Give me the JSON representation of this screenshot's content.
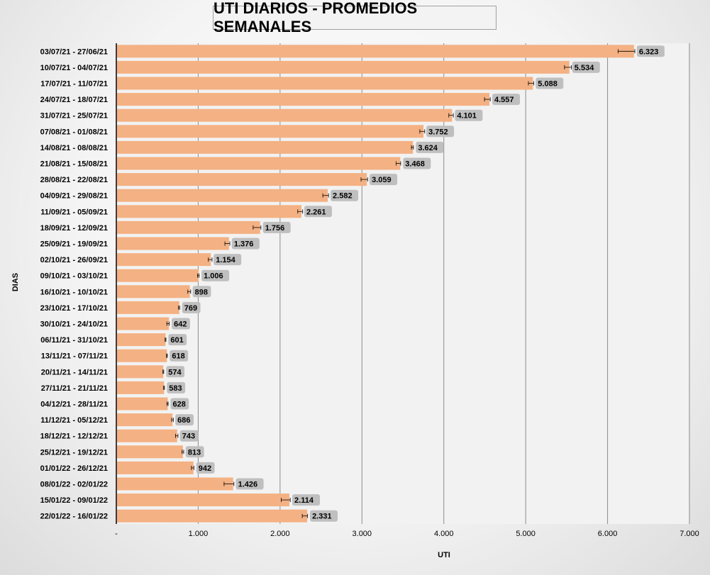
{
  "chart_data": {
    "type": "bar",
    "orientation": "horizontal",
    "title": "UTI DIARIOS - PROMEDIOS SEMANALES",
    "xlabel": "UTI",
    "ylabel": "DIAS",
    "xlim": [
      0,
      7000
    ],
    "x_ticks": [
      0,
      1000,
      2000,
      3000,
      4000,
      5000,
      6000,
      7000
    ],
    "x_tick_labels": [
      "-",
      "1.000",
      "2.000",
      "3.000",
      "4.000",
      "5.000",
      "6.000",
      "7.000"
    ],
    "grid": true,
    "error_bars": true,
    "bar_color": "#f4b183",
    "label_bg_color": "#bfbfbf",
    "plot_bg_color": "#f2f2f2",
    "categories": [
      "03/07/21 - 27/06/21",
      "10/07/21 - 04/07/21",
      "17/07/21 - 11/07/21",
      "24/07/21 - 18/07/21",
      "31/07/21 - 25/07/21",
      "07/08/21 - 01/08/21",
      "14/08/21 - 08/08/21",
      "21/08/21 - 15/08/21",
      "28/08/21 - 22/08/21",
      "04/09/21 - 29/08/21",
      "11/09/21 - 05/09/21",
      "18/09/21 - 12/09/21",
      "25/09/21 - 19/09/21",
      "02/10/21 - 26/09/21",
      "09/10/21 - 03/10/21",
      "16/10/21 - 10/10/21",
      "23/10/21 - 17/10/21",
      "30/10/21 - 24/10/21",
      "06/11/21 - 31/10/21",
      "13/11/21 - 07/11/21",
      "20/11/21 - 14/11/21",
      "27/11/21 - 21/11/21",
      "04/12/21 - 28/11/21",
      "11/12/21 - 05/12/21",
      "18/12/21 - 12/12/21",
      "25/12/21 - 19/12/21",
      "01/01/22 - 26/12/21",
      "08/01/22 - 02/01/22",
      "15/01/22 - 09/01/22",
      "22/01/22 - 16/01/22"
    ],
    "values": [
      6323,
      5534,
      5088,
      4557,
      4101,
      3752,
      3624,
      3468,
      3059,
      2582,
      2261,
      1756,
      1376,
      1154,
      1006,
      898,
      769,
      642,
      601,
      618,
      574,
      583,
      628,
      686,
      743,
      813,
      942,
      1426,
      2114,
      2331
    ],
    "value_labels": [
      "6.323",
      "5.534",
      "5.088",
      "4.557",
      "4.101",
      "3.752",
      "3.624",
      "3.468",
      "3.059",
      "2.582",
      "2.261",
      "1.756",
      "1.376",
      "1.154",
      "1.006",
      "898",
      "769",
      "642",
      "601",
      "618",
      "574",
      "583",
      "628",
      "686",
      "743",
      "813",
      "942",
      "1.426",
      "2.114",
      "2.331"
    ],
    "error_minus": [
      195,
      60,
      55,
      60,
      40,
      45,
      20,
      50,
      70,
      60,
      45,
      85,
      50,
      30,
      15,
      25,
      10,
      25,
      5,
      5,
      5,
      5,
      10,
      10,
      20,
      10,
      25,
      110,
      100,
      60
    ],
    "error_plus": [
      10,
      25,
      10,
      10,
      15,
      15,
      5,
      5,
      10,
      10,
      15,
      10,
      10,
      15,
      5,
      10,
      5,
      5,
      5,
      5,
      5,
      5,
      5,
      10,
      10,
      10,
      5,
      10,
      10,
      5
    ]
  }
}
